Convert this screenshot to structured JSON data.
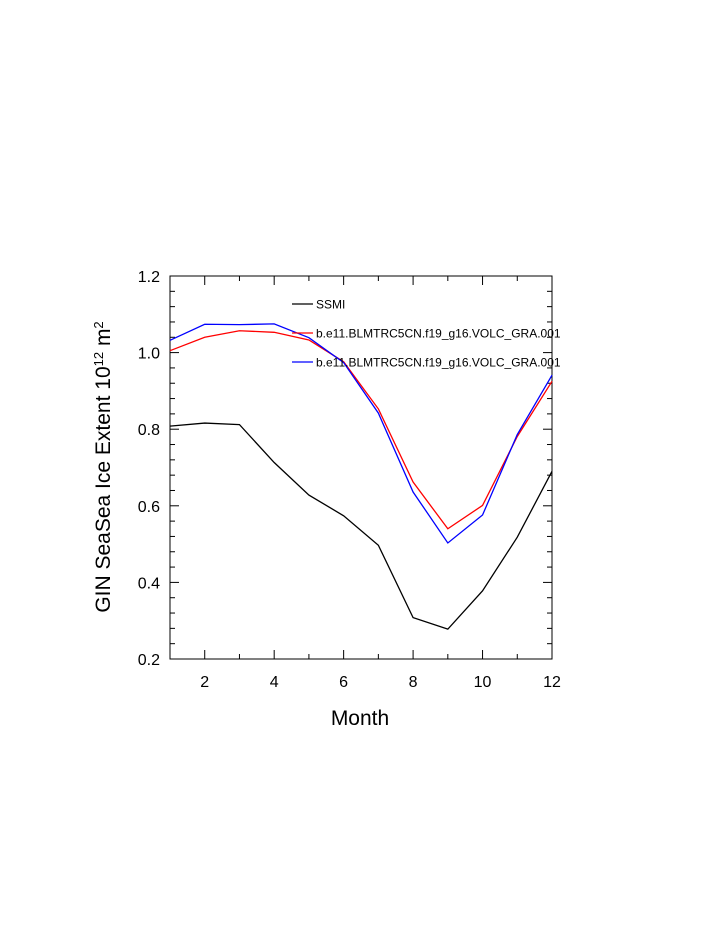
{
  "chart_data": {
    "type": "line",
    "title": "",
    "xlabel": "Month",
    "ylabel_main": "GIN SeaSea Ice Extent 10",
    "ylabel_exp": "12",
    "ylabel_tail": " m",
    "ylabel_exp2": "2",
    "xlim": [
      1,
      12
    ],
    "ylim": [
      0.2,
      1.2
    ],
    "x": [
      1,
      2,
      3,
      4,
      5,
      6,
      7,
      8,
      9,
      10,
      11,
      12
    ],
    "x_ticks": [
      2,
      4,
      6,
      8,
      10,
      12
    ],
    "x_tick_labels": [
      "2",
      "4",
      "6",
      "8",
      "10",
      "12"
    ],
    "y_ticks": [
      0.2,
      0.4,
      0.6,
      0.8,
      1.0,
      1.2
    ],
    "y_tick_labels": [
      "0.2",
      "0.4",
      "0.6",
      "0.8",
      "1.0",
      "1.2"
    ],
    "grid": false,
    "legend_position": "top-right inside",
    "series": [
      {
        "name": "SSMI",
        "color": "#000000",
        "values": [
          0.808,
          0.816,
          0.812,
          0.713,
          0.628,
          0.574,
          0.497,
          0.308,
          0.278,
          0.378,
          0.518,
          0.69
        ]
      },
      {
        "name": "b.e11.BLMTRC5CN.f19_g16.VOLC_GRA.001",
        "color": "#ff0000",
        "values": [
          1.005,
          1.04,
          1.057,
          1.053,
          1.033,
          0.976,
          0.853,
          0.662,
          0.54,
          0.601,
          0.781,
          0.925
        ]
      },
      {
        "name": "b.e11.BLMTRC5CN.f19_g16.VOLC_GRA.001",
        "color": "#0000ff",
        "values": [
          1.032,
          1.074,
          1.073,
          1.075,
          1.039,
          0.974,
          0.842,
          0.636,
          0.503,
          0.576,
          0.786,
          0.941
        ]
      }
    ]
  }
}
